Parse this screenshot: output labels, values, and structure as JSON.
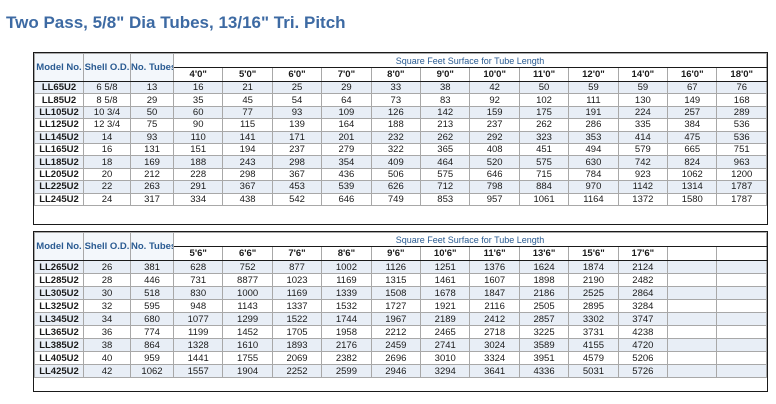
{
  "title": "Two Pass, 5/8\" Dia Tubes, 13/16\" Tri. Pitch",
  "table1": {
    "headers": {
      "model": "Model No.",
      "shell": "Shell O.D.",
      "tubes": "No. Tubes",
      "span": "Square Feet Surface for Tube Length"
    },
    "lengths": [
      "4'0\"",
      "5'0\"",
      "6'0\"",
      "7'0\"",
      "8'0\"",
      "9'0\"",
      "10'0\"",
      "11'0\"",
      "12'0\"",
      "14'0\"",
      "16'0\"",
      "18'0\""
    ],
    "rows": [
      [
        "LL65U2",
        "6 5/8",
        "13",
        "16",
        "21",
        "25",
        "29",
        "33",
        "38",
        "42",
        "50",
        "59",
        "59",
        "67",
        "76"
      ],
      [
        "LL85U2",
        "8 5/8",
        "29",
        "35",
        "45",
        "54",
        "64",
        "73",
        "83",
        "92",
        "102",
        "111",
        "130",
        "149",
        "168"
      ],
      [
        "LL105U2",
        "10 3/4",
        "50",
        "60",
        "77",
        "93",
        "109",
        "126",
        "142",
        "159",
        "175",
        "191",
        "224",
        "257",
        "289"
      ],
      [
        "LL125U2",
        "12 3/4",
        "75",
        "90",
        "115",
        "139",
        "164",
        "188",
        "213",
        "237",
        "262",
        "286",
        "335",
        "384",
        "536"
      ],
      [
        "LL145U2",
        "14",
        "93",
        "110",
        "141",
        "171",
        "201",
        "232",
        "262",
        "292",
        "323",
        "353",
        "414",
        "475",
        "536"
      ],
      [
        "LL165U2",
        "16",
        "131",
        "151",
        "194",
        "237",
        "279",
        "322",
        "365",
        "408",
        "451",
        "494",
        "579",
        "665",
        "751"
      ],
      [
        "LL185U2",
        "18",
        "169",
        "188",
        "243",
        "298",
        "354",
        "409",
        "464",
        "520",
        "575",
        "630",
        "742",
        "824",
        "963"
      ],
      [
        "LL205U2",
        "20",
        "212",
        "228",
        "298",
        "367",
        "436",
        "506",
        "575",
        "646",
        "715",
        "784",
        "923",
        "1062",
        "1200"
      ],
      [
        "LL225U2",
        "22",
        "263",
        "291",
        "367",
        "453",
        "539",
        "626",
        "712",
        "798",
        "884",
        "970",
        "1142",
        "1314",
        "1787"
      ],
      [
        "LL245U2",
        "24",
        "317",
        "334",
        "438",
        "542",
        "646",
        "749",
        "853",
        "957",
        "1061",
        "1164",
        "1372",
        "1580",
        "1787"
      ]
    ]
  },
  "table2": {
    "headers": {
      "model": "Model No.",
      "shell": "Shell O.D.",
      "tubes": "No. Tubes",
      "span": "Square Feet Surface for Tube Length"
    },
    "lengths": [
      "5'6\"",
      "6'6\"",
      "7'6\"",
      "8'6\"",
      "9'6\"",
      "10'6\"",
      "11'6\"",
      "13'6\"",
      "15'6\"",
      "17'6\"",
      "",
      ""
    ],
    "rows": [
      [
        "LL265U2",
        "26",
        "381",
        "628",
        "752",
        "877",
        "1002",
        "1126",
        "1251",
        "1376",
        "1624",
        "1874",
        "2124",
        "",
        ""
      ],
      [
        "LL285U2",
        "28",
        "446",
        "731",
        "8877",
        "1023",
        "1169",
        "1315",
        "1461",
        "1607",
        "1898",
        "2190",
        "2482",
        "",
        ""
      ],
      [
        "LL305U2",
        "30",
        "518",
        "830",
        "1000",
        "1169",
        "1339",
        "1508",
        "1678",
        "1847",
        "2186",
        "2525",
        "2864",
        "",
        ""
      ],
      [
        "LL325U2",
        "32",
        "595",
        "948",
        "1143",
        "1337",
        "1532",
        "1727",
        "1921",
        "2116",
        "2505",
        "2895",
        "3284",
        "",
        ""
      ],
      [
        "LL345U2",
        "34",
        "680",
        "1077",
        "1299",
        "1522",
        "1744",
        "1967",
        "2189",
        "2412",
        "2857",
        "3302",
        "3747",
        "",
        ""
      ],
      [
        "LL365U2",
        "36",
        "774",
        "1199",
        "1452",
        "1705",
        "1958",
        "2212",
        "2465",
        "2718",
        "3225",
        "3731",
        "4238",
        "",
        ""
      ],
      [
        "LL385U2",
        "38",
        "864",
        "1328",
        "1610",
        "1893",
        "2176",
        "2459",
        "2741",
        "3024",
        "3589",
        "4155",
        "4720",
        "",
        ""
      ],
      [
        "LL405U2",
        "40",
        "959",
        "1441",
        "1755",
        "2069",
        "2382",
        "2696",
        "3010",
        "3324",
        "3951",
        "4579",
        "5206",
        "",
        ""
      ],
      [
        "LL425U2",
        "42",
        "1062",
        "1557",
        "1904",
        "2252",
        "2599",
        "2946",
        "3294",
        "3641",
        "4336",
        "5031",
        "5726",
        "",
        ""
      ]
    ]
  }
}
